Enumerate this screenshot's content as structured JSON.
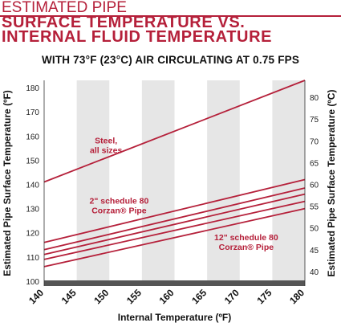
{
  "header": {
    "line1": "ESTIMATED PIPE",
    "line2a": "SURFACE TEMPERATURE VS.",
    "line2b": "INTERNAL FLUID TEMPERATURE",
    "subtitle": "WITH 73°F (23°C) AIR CIRCULATING AT 0.75 FPS"
  },
  "colors": {
    "accent": "#b5203a",
    "band": "#e6e6e6",
    "baseline": "#555555"
  },
  "chart_data": {
    "type": "line",
    "xlabel": "Internal Temperature (ºF)",
    "ylabel": "Estimated Pipe Surface Temperature (ºF)",
    "ylabel_right": "Estimated Pipe Surface Temperature (ºC)",
    "xlim": [
      140,
      180
    ],
    "ylim": [
      98,
      183
    ],
    "x_ticks": [
      140,
      145,
      150,
      155,
      160,
      165,
      170,
      175,
      180
    ],
    "y_ticks": [
      100,
      110,
      120,
      130,
      140,
      150,
      160,
      170,
      180
    ],
    "y2_ticks": [
      {
        "label": "40",
        "f": 104
      },
      {
        "label": "45",
        "f": 113
      },
      {
        "label": "50",
        "f": 122
      },
      {
        "label": "55",
        "f": 131
      },
      {
        "label": "60",
        "f": 140
      },
      {
        "label": "65",
        "f": 149
      },
      {
        "label": "70",
        "f": 158
      },
      {
        "label": "75",
        "f": 167
      },
      {
        "label": "80",
        "f": 176
      }
    ],
    "series": [
      {
        "x": [
          140,
          180
        ],
        "values": [
          141,
          183
        ]
      },
      {
        "x": [
          140,
          180
        ],
        "values": [
          116,
          142
        ]
      },
      {
        "x": [
          140,
          180
        ],
        "values": [
          113,
          138.5
        ]
      },
      {
        "x": [
          140,
          180
        ],
        "values": [
          111,
          136
        ]
      },
      {
        "x": [
          140,
          180
        ],
        "values": [
          109,
          133
        ]
      },
      {
        "x": [
          140,
          180
        ],
        "values": [
          106,
          130
        ]
      }
    ],
    "annotations": [
      {
        "lines": [
          "Steel,",
          "all sizes"
        ],
        "x": 149.5,
        "y": 157
      },
      {
        "lines": [
          "2\" schedule 80",
          "Corzan® Pipe"
        ],
        "x": 151.5,
        "y": 132
      },
      {
        "lines": [
          "12\" schedule 80",
          "Corzan® Pipe"
        ],
        "x": 171,
        "y": 117
      }
    ],
    "grid": false,
    "legend": "none"
  }
}
